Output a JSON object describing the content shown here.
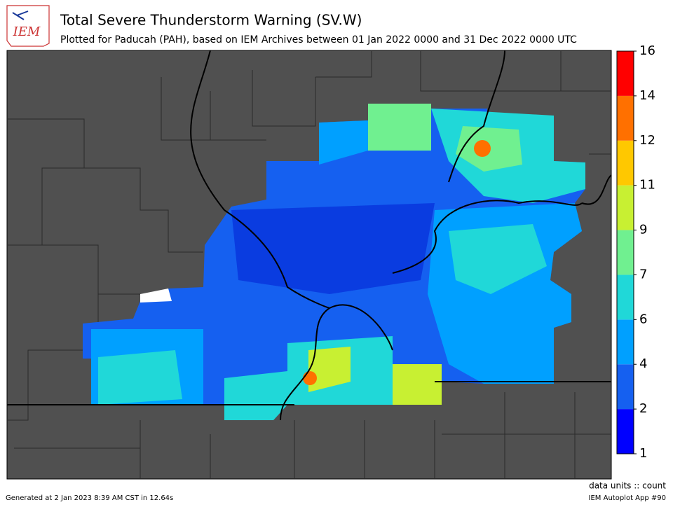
{
  "logo": {
    "text": "IEM"
  },
  "header": {
    "title": "Total Severe Thunderstorm Warning (SV.W)",
    "subtitle": "Plotted for Paducah (PAH), based on IEM Archives  between 01 Jan 2022 0000 and 31 Dec 2022 0000 UTC"
  },
  "colorbar": {
    "ticks": [
      1,
      2,
      4,
      6,
      7,
      9,
      11,
      12,
      14,
      16
    ],
    "colors": [
      "#0000ff",
      "#1560f0",
      "#00a0ff",
      "#20d8d8",
      "#70f090",
      "#c8f032",
      "#ffc800",
      "#ff7000",
      "#ff0000"
    ],
    "units": "data units :: count"
  },
  "footer": {
    "generated": "Generated at 2 Jan 2023 8:39 AM CST in 12.64s",
    "app": "IEM Autoplot App #90"
  }
}
